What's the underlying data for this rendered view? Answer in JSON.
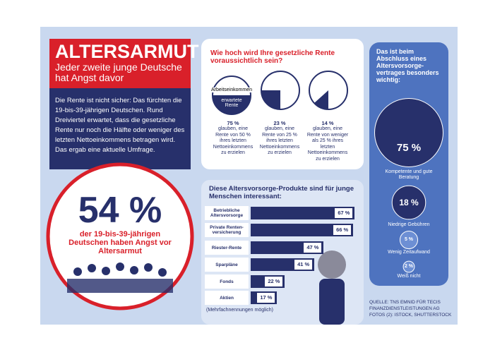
{
  "header": {
    "title": "ALTERSARMUT",
    "subtitle": "Jeder zweite junge Deutsche hat Angst davor"
  },
  "intro": "Die Rente ist nicht sicher: Das fürchten die 19-bis-39-jährigen Deutschen. Rund Dreiviertel erwartet, dass die gesetzliche Rente nur noch die Hälfte oder weniger des letzten Nettoeinkommens betragen wird. Das ergab eine aktuelle Umfrage.",
  "highlight": {
    "value": "54 %",
    "text": "der 19-bis-39-jährigen Deutschen haben Angst vor Altersarmut"
  },
  "pension": {
    "title": "Wie hoch wird Ihre gesetzliche Rente voraussichtlich sein?",
    "legend": [
      "Arbeitseinkommen",
      "erwartete Rente"
    ],
    "items": [
      {
        "share": "75 %",
        "text": "glauben, eine Rente von 50 % ihres letzten Nettoeinkommens zu erzielen"
      },
      {
        "share": "23 %",
        "text": "glauben, eine Rente von 25 % ihres letzten Nettoeinkommens zu erzielen"
      },
      {
        "share": "14 %",
        "text": "glauben, eine Rente von weniger als 25 % ihres letzten Nettoeinkommens zu erzielen"
      }
    ]
  },
  "chart_data": [
    {
      "type": "bar",
      "title": "Diese Altersvorsorge-Produkte sind für junge Menschen interessant:",
      "categories": [
        "Betriebliche Altersvorsorge",
        "Private Renten-versicherung",
        "Riester-Rente",
        "Sparpläne",
        "Fonds",
        "Aktien"
      ],
      "values": [
        67,
        66,
        47,
        41,
        22,
        17
      ],
      "value_labels": [
        "67 %",
        "66 %",
        "47 %",
        "41 %",
        "22 %",
        "17 %"
      ],
      "note": "(Mehrfachnennungen möglich)",
      "color": "#27306b"
    },
    {
      "type": "bubble",
      "title": "Das ist beim Abschluss eines Altersvorsorge-vertrages besonders wichtig:",
      "categories": [
        "Kompetente und gute Beratung",
        "Niedrige Gebühren",
        "Wenig Zeitaufwand",
        "Weiß nicht"
      ],
      "values": [
        75,
        18,
        5,
        2
      ],
      "value_labels": [
        "75 %",
        "18 %",
        "5 %",
        "2 %"
      ],
      "colors": [
        "#27306b",
        "#27306b",
        "#6d8fd4",
        "#6d8fd4"
      ]
    }
  ],
  "source": [
    "QUELLE: TNS EMNID FÜR TECIS FINANZDIENSTLEISTUNGEN AG",
    "FOTOS (2): ISTOCK, SHUTTERSTOCK"
  ]
}
